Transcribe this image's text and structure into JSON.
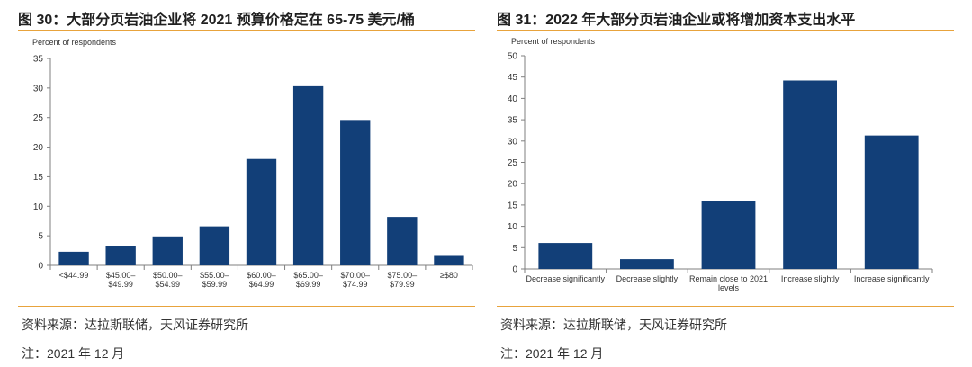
{
  "left_panel": {
    "title": "图 30：大部分页岩油企业将 2021 预算价格定在 65-75 美元/桶",
    "source": "资料来源：达拉斯联储，天风证券研究所",
    "note": "注：2021 年 12 月"
  },
  "right_panel": {
    "title": "图 31：2022 年大部分页岩油企业或将增加资本支出水平",
    "source": "资料来源：达拉斯联储，天风证券研究所",
    "note": "注：2021 年 12 月"
  },
  "colors": {
    "bar": "#123f78",
    "rule": "#e8a33c",
    "axis": "#7f7f7f"
  },
  "chart_data": [
    {
      "type": "bar",
      "title": "",
      "ylabel": "Percent of respondents",
      "xlabel": "",
      "ylim": [
        0,
        35
      ],
      "yticks": [
        0,
        5,
        10,
        15,
        20,
        25,
        30,
        35
      ],
      "categories": [
        [
          "<$44.99"
        ],
        [
          "$45.00–",
          "$49.99"
        ],
        [
          "$50.00–",
          "$54.99"
        ],
        [
          "$55.00–",
          "$59.99"
        ],
        [
          "$60.00–",
          "$64.99"
        ],
        [
          "$65.00–",
          "$69.99"
        ],
        [
          "$70.00–",
          "$74.99"
        ],
        [
          "$75.00–",
          "$79.99"
        ],
        [
          "≥$80"
        ]
      ],
      "values": [
        2.3,
        3.3,
        4.9,
        6.6,
        18.0,
        30.3,
        24.6,
        8.2,
        1.6
      ]
    },
    {
      "type": "bar",
      "title": "",
      "ylabel": "Percent of respondents",
      "xlabel": "",
      "ylim": [
        0,
        50
      ],
      "yticks": [
        0,
        5,
        10,
        15,
        20,
        25,
        30,
        35,
        40,
        45,
        50
      ],
      "categories": [
        [
          "Decrease significantly"
        ],
        [
          "Decrease slightly"
        ],
        [
          "Remain close to 2021",
          "levels"
        ],
        [
          "Increase slightly"
        ],
        [
          "Increase significantly"
        ]
      ],
      "values": [
        6.1,
        2.3,
        16.0,
        44.2,
        31.3
      ]
    }
  ]
}
